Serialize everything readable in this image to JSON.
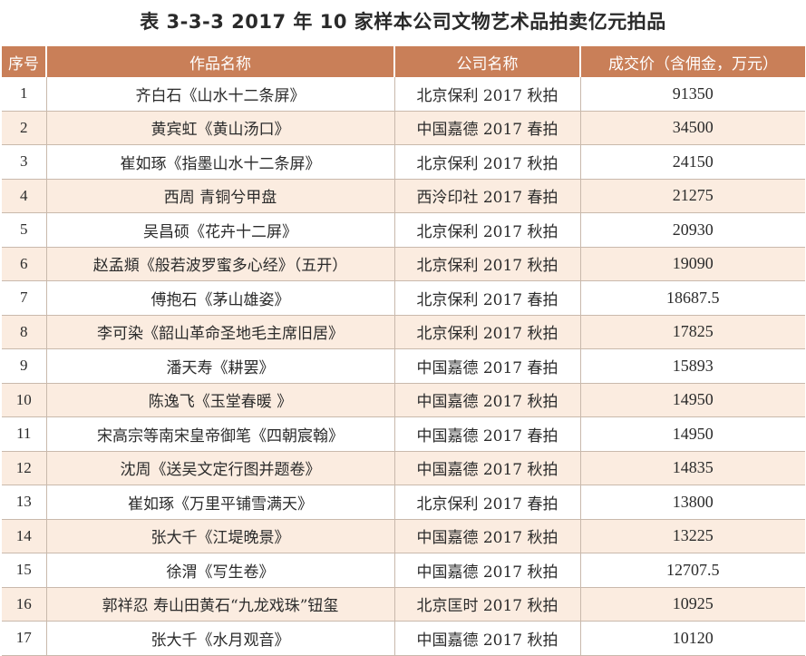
{
  "title": "表 3-3-3 2017 年 10 家样本公司文物艺术品拍卖亿元拍品",
  "columns": {
    "index": "序号",
    "work": "作品名称",
    "company": "公司名称",
    "price": "成交价（含佣金，万元）"
  },
  "rows": [
    {
      "index": "1",
      "work": "齐白石《山水十二条屏》",
      "company": "北京保利 2017 秋拍",
      "price": "91350"
    },
    {
      "index": "2",
      "work": "黄宾虹《黄山汤口》",
      "company": "中国嘉德 2017 春拍",
      "price": "34500"
    },
    {
      "index": "3",
      "work": "崔如琢《指墨山水十二条屏》",
      "company": "北京保利 2017 秋拍",
      "price": "24150"
    },
    {
      "index": "4",
      "work": "西周 青铜兮甲盘",
      "company": "西泠印社 2017 春拍",
      "price": "21275"
    },
    {
      "index": "5",
      "work": "吴昌硕《花卉十二屏》",
      "company": "北京保利 2017 秋拍",
      "price": "20930"
    },
    {
      "index": "6",
      "work": "赵孟頫《般若波罗蜜多心经》（五开）",
      "company": "北京保利 2017 秋拍",
      "price": "19090"
    },
    {
      "index": "7",
      "work": "傅抱石《茅山雄姿》",
      "company": "北京保利 2017 春拍",
      "price": "18687.5"
    },
    {
      "index": "8",
      "work": "李可染《韶山革命圣地毛主席旧居》",
      "company": "北京保利 2017 秋拍",
      "price": "17825"
    },
    {
      "index": "9",
      "work": "潘天寿《耕罢》",
      "company": "中国嘉德 2017 春拍",
      "price": "15893"
    },
    {
      "index": "10",
      "work": "陈逸飞《玉堂春暖 》",
      "company": "中国嘉德 2017 秋拍",
      "price": "14950"
    },
    {
      "index": "11",
      "work": "宋高宗等南宋皇帝御笔《四朝宸翰》",
      "company": "中国嘉德 2017 春拍",
      "price": "14950"
    },
    {
      "index": "12",
      "work": "沈周《送吴文定行图并题卷》",
      "company": "中国嘉德 2017 秋拍",
      "price": "14835"
    },
    {
      "index": "13",
      "work": "崔如琢《万里平铺雪满天》",
      "company": "北京保利 2017 春拍",
      "price": "13800"
    },
    {
      "index": "14",
      "work": "张大千《江堤晚景》",
      "company": "中国嘉德 2017 秋拍",
      "price": "13225"
    },
    {
      "index": "15",
      "work": "徐渭《写生卷》",
      "company": "中国嘉德 2017 秋拍",
      "price": "12707.5"
    },
    {
      "index": "16",
      "work": "郭祥忍 寿山田黄石“九龙戏珠”钮玺",
      "company": "北京匡时 2017 秋拍",
      "price": "10925"
    },
    {
      "index": "17",
      "work": "张大千《水月观音》",
      "company": "中国嘉德 2017 秋拍",
      "price": "10120"
    }
  ],
  "colors": {
    "header_bg": "#c97f58",
    "stripe_bg": "#fbece0",
    "border": "#c9b9ac"
  }
}
